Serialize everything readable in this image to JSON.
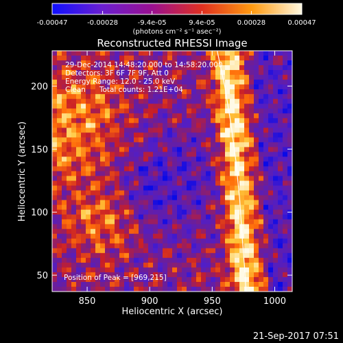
{
  "chart_data": {
    "type": "heatmap",
    "title": "Reconstructed RHESSI Image",
    "xlabel": "Heliocentric X (arcsec)",
    "ylabel": "Heliocentric Y (arcsec)",
    "xlim": [
      822,
      1014
    ],
    "ylim": [
      37,
      228
    ],
    "x_ticks": [
      850,
      900,
      950,
      1000
    ],
    "y_ticks": [
      50,
      100,
      150,
      200
    ],
    "x_tick_labels": [
      "850",
      "900",
      "950",
      "1000"
    ],
    "y_tick_labels": [
      "50",
      "100",
      "150",
      "200"
    ],
    "colorbar": {
      "range": [
        -0.00047,
        0.00047
      ],
      "tick_values": [
        -0.00047,
        -0.00028,
        -9.4e-05,
        9.4e-05,
        0.00028,
        0.00047
      ],
      "tick_labels": [
        "-0.00047",
        "-0.00028",
        "-9.4e-05",
        "9.4e-05",
        "0.00028",
        "0.00047"
      ],
      "unit_label": "(photons cm⁻² s⁻¹ asec⁻²)",
      "colors": [
        "#1010ff",
        "#6a1fd0",
        "#9a1090",
        "#e03020",
        "#ff9a10",
        "#fff8e0"
      ]
    },
    "annotations": [
      "29-Dec-2014 14:48:20.000 to 14:58:20.000",
      "Detectors: 3F 6F 7F 9F, Att 0",
      "Energy Range: 12.0 - 25.0 keV",
      "Clean      Total counts: 1.21E+04"
    ],
    "peak_label": "Position of Peak = [969,215]",
    "peak": [
      969,
      215
    ],
    "limb_curve": [
      [
        954,
        228
      ],
      [
        960,
        200
      ],
      [
        965,
        170
      ],
      [
        969,
        140
      ],
      [
        972,
        110
      ],
      [
        974,
        80
      ],
      [
        976,
        55
      ],
      [
        977,
        37
      ]
    ],
    "footer": "21-Sep-2017 07:51"
  }
}
